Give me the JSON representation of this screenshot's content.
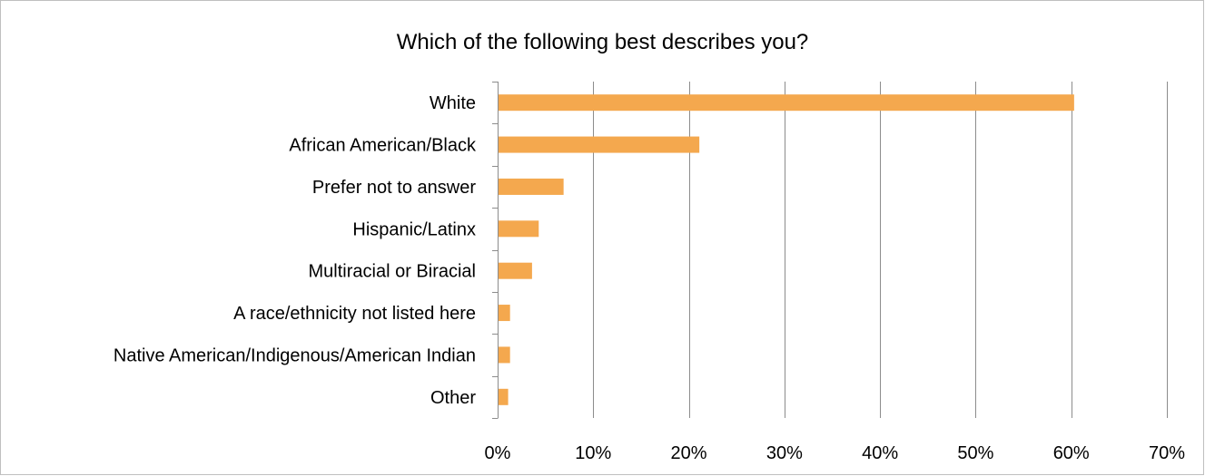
{
  "chart_data": {
    "type": "bar",
    "orientation": "horizontal",
    "title": "Which of the following best describes you?",
    "xlabel": "",
    "ylabel": "",
    "categories": [
      "White",
      "African American/Black",
      "Prefer not to answer",
      "Hispanic/Latinx",
      "Multiracial or Biracial",
      "A race/ethnicity not listed here",
      "Native American/Indigenous/American Indian",
      "Other"
    ],
    "values": [
      60.3,
      21.1,
      6.9,
      4.3,
      3.6,
      1.3,
      1.3,
      1.1
    ],
    "value_unit": "%",
    "xlim": [
      0,
      70
    ],
    "xticks": [
      0,
      10,
      20,
      30,
      40,
      50,
      60,
      70
    ],
    "xtick_labels": [
      "0%",
      "10%",
      "20%",
      "30%",
      "40%",
      "50%",
      "60%",
      "70%"
    ],
    "grid": "vertical",
    "legend": "none",
    "bar_color": "#f4a84e",
    "grid_color": "#8c8c8c",
    "axis_color": "#8c8c8c"
  }
}
